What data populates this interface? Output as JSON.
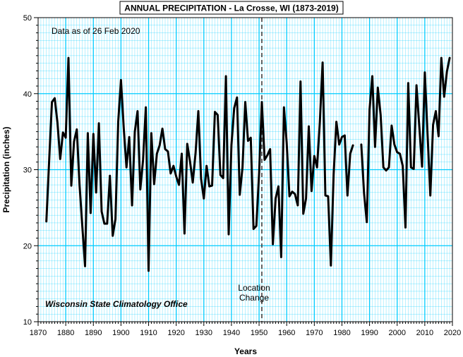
{
  "chart_data": {
    "type": "line",
    "title": "ANNUAL PRECIPITATION - La Crosse, WI (1873-2019)",
    "xlabel": "Years",
    "ylabel": "Precipitation (inches)",
    "xlim": [
      1870,
      2020
    ],
    "ylim": [
      10,
      50
    ],
    "x_ticks": [
      1870,
      1880,
      1890,
      1900,
      1910,
      1920,
      1930,
      1940,
      1950,
      1960,
      1970,
      1980,
      1990,
      2000,
      2010,
      2020
    ],
    "y_ticks": [
      10,
      20,
      30,
      40,
      50
    ],
    "grid": true,
    "line_color": "#000000",
    "grid_color": "#00ccff",
    "annotations": {
      "data_note": "Data as of 26 Feb 2020",
      "credit": "Wisconsin State Climatology Office",
      "location_change_line1": "Location",
      "location_change_line2": "Change",
      "location_change_year": 1951
    },
    "series": [
      {
        "segments": [
          {
            "x": [
              1873,
              1874,
              1875,
              1876,
              1877,
              1878,
              1879,
              1880,
              1881,
              1882,
              1883,
              1884,
              1885,
              1886,
              1887,
              1888,
              1889,
              1890,
              1891,
              1892,
              1893,
              1894,
              1895,
              1896,
              1897,
              1898,
              1899,
              1900,
              1901,
              1902,
              1903,
              1904,
              1905,
              1906,
              1907,
              1908,
              1909,
              1910,
              1911,
              1912,
              1913,
              1914,
              1915,
              1916,
              1917,
              1918,
              1919,
              1920,
              1921,
              1922,
              1923,
              1924,
              1925,
              1926,
              1927,
              1928,
              1929,
              1930,
              1931,
              1932,
              1933,
              1934,
              1935,
              1936,
              1937,
              1938,
              1939,
              1940,
              1941,
              1942,
              1943,
              1944,
              1945,
              1946,
              1947,
              1948,
              1949,
              1950,
              1951,
              1952,
              1953,
              1954,
              1955,
              1956,
              1957,
              1958,
              1959,
              1960,
              1961,
              1962,
              1963,
              1964,
              1965,
              1966,
              1967,
              1968,
              1969,
              1970,
              1971,
              1972,
              1973,
              1974,
              1975,
              1976,
              1977,
              1978,
              1979,
              1980,
              1981,
              1982,
              1983,
              1984
            ],
            "y": [
              23.2,
              31.3,
              38.9,
              39.4,
              36.2,
              31.4,
              34.9,
              34.2,
              44.7,
              27.9,
              33.7,
              35.3,
              28.0,
              22.6,
              17.3,
              34.8,
              24.3,
              34.7,
              27.0,
              36.1,
              24.5,
              22.9,
              22.9,
              29.2,
              21.3,
              23.5,
              36.3,
              41.8,
              35.5,
              30.3,
              34.3,
              25.3,
              35.0,
              37.7,
              27.4,
              31.3,
              38.2,
              16.7,
              34.8,
              28.1,
              32.1,
              33.2,
              35.4,
              32.7,
              32.4,
              29.5,
              30.5,
              29.1,
              28.0,
              32.1,
              21.6,
              33.4,
              31.1,
              28.3,
              32.2,
              37.7,
              28.8,
              26.2,
              30.5,
              27.8,
              27.9,
              37.6,
              37.2,
              29.3,
              28.9,
              42.3,
              21.5,
              33.2,
              38.1,
              39.5,
              26.7,
              30.3,
              38.9,
              33.8,
              34.2,
              22.2,
              22.6,
              29.5,
              38.9,
              31.3,
              31.9,
              32.7,
              20.2,
              26.2,
              27.8,
              18.5,
              38.2,
              33.5,
              26.5,
              27.1,
              26.8,
              25.3,
              41.6,
              24.2,
              26.2,
              35.7,
              27.2,
              31.8,
              30.3,
              36.3,
              44.1,
              26.6,
              26.5,
              17.4,
              29.4,
              36.3,
              33.3,
              34.3,
              34.5,
              26.6,
              32.1,
              33.2
            ]
          },
          {
            "x": [
              1987,
              1988,
              1989,
              1990,
              1991,
              1992,
              1993,
              1994,
              1995,
              1996,
              1997,
              1998,
              1999,
              2000,
              2001,
              2002,
              2003,
              2004,
              2005,
              2006,
              2007,
              2008,
              2009,
              2010,
              2011,
              2012,
              2013,
              2014,
              2015,
              2016,
              2017,
              2018,
              2019
            ],
            "y": [
              33.3,
              26.9,
              23.1,
              37.9,
              42.3,
              33.0,
              40.8,
              37.2,
              30.3,
              29.9,
              30.3,
              35.8,
              33.3,
              32.3,
              32.1,
              30.5,
              22.4,
              41.4,
              30.3,
              30.1,
              41.1,
              35.8,
              30.4,
              42.8,
              34.6,
              26.6,
              35.9,
              37.7,
              34.4,
              44.7,
              39.6,
              42.9,
              44.7
            ]
          }
        ]
      }
    ]
  }
}
